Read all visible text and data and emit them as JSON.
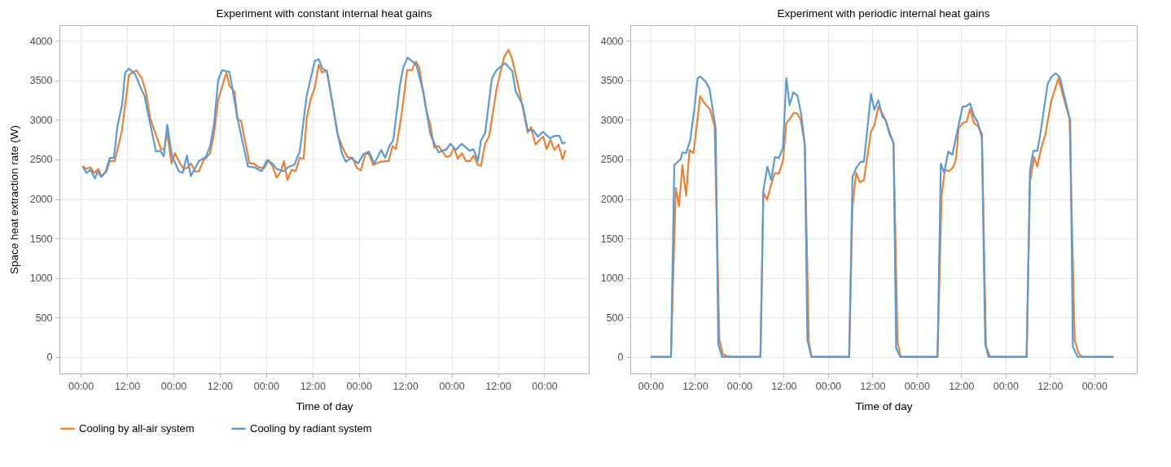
{
  "chart_data": [
    {
      "type": "line",
      "title": "Experiment with constant internal heat gains",
      "xlabel": "Time of day",
      "ylabel": "Space heat extraction rate (W)",
      "xlim": [
        "--01-01T18:30",
        "--01-07T11:30"
      ],
      "ylim": [
        -210,
        4200
      ],
      "xticks": [
        {
          "value": "--01-02T00:00",
          "label": "00:00"
        },
        {
          "value": "--01-02T12:00",
          "label": "12:00"
        },
        {
          "value": "--01-03T00:00",
          "label": "00:00"
        },
        {
          "value": "--01-03T12:00",
          "label": "12:00"
        },
        {
          "value": "--01-04T00:00",
          "label": "00:00"
        },
        {
          "value": "--01-04T12:00",
          "label": "12:00"
        },
        {
          "value": "--01-05T00:00",
          "label": "00:00"
        },
        {
          "value": "--01-05T12:00",
          "label": "12:00"
        },
        {
          "value": "--01-06T00:00",
          "label": "00:00"
        },
        {
          "value": "--01-06T12:00",
          "label": "12:00"
        },
        {
          "value": "--01-07T00:00",
          "label": "00:00"
        }
      ],
      "yticks": [
        0,
        500,
        1000,
        1500,
        2000,
        2500,
        3000,
        3500,
        4000
      ],
      "grid": true,
      "legend": "bottom",
      "series": [
        {
          "name": "Cooling by all-air system",
          "color": "#ee8032",
          "x": [
            "--01-02T00:30",
            "--01-02T01:24",
            "--01-02T02:30",
            "--01-02T03:30",
            "--01-02T04:36",
            "--01-02T05:24",
            "--01-02T06:42",
            "--01-02T07:30",
            "--01-02T08:48",
            "--01-02T09:30",
            "--01-02T10:36",
            "--01-02T11:36",
            "--01-02T12:30",
            "--01-02T14:24",
            "--01-02T15:48",
            "--01-02T16:54",
            "--01-02T18:00",
            "--01-02T19:24",
            "--01-02T20:48",
            "--01-02T21:36",
            "--01-02T22:24",
            "--01-02T23:30",
            "--01-03T00:24",
            "--01-03T01:42",
            "--01-03T02:42",
            "--01-03T03:48",
            "--01-03T04:30",
            "--01-03T05:36",
            "--01-03T06:36",
            "--01-03T07:42",
            "--01-03T09:30",
            "--01-03T10:30",
            "--01-03T11:36",
            "--01-03T13:42",
            "--01-03T14:30",
            "--01-03T15:48",
            "--01-03T16:36",
            "--01-03T17:30",
            "--01-03T19:42",
            "--01-03T20:42",
            "--01-03T22:06",
            "--01-03T23:30",
            "--01-04T00:36",
            "--01-04T01:42",
            "--01-04T02:42",
            "--01-04T03:48",
            "--01-04T04:36",
            "--01-04T05:30",
            "--01-04T06:36",
            "--01-04T07:36",
            "--01-04T08:42",
            "--01-04T09:42",
            "--01-04T10:30",
            "--01-04T11:30",
            "--01-04T12:36",
            "--01-04T13:36",
            "--01-04T14:30",
            "--01-04T15:42",
            "--01-04T17:06",
            "--01-04T18:30",
            "--01-04T19:36",
            "--01-04T21:00",
            "--01-04T22:24",
            "--01-04T23:24",
            "--01-05T00:30",
            "--01-05T01:42",
            "--01-05T02:36",
            "--01-05T03:42",
            "--01-05T05:24",
            "--01-05T07:42",
            "--01-05T08:42",
            "--01-05T09:36",
            "--01-05T11:06",
            "--01-05T12:30",
            "--01-05T13:42",
            "--01-05T14:42",
            "--01-05T15:36",
            "--01-05T17:24",
            "--01-05T18:30",
            "--01-05T19:30",
            "--01-05T20:36",
            "--01-05T22:42",
            "--01-05T23:42",
            "--01-06T00:36",
            "--01-06T01:36",
            "--01-06T02:42",
            "--01-06T03:42",
            "--01-06T04:48",
            "--01-06T05:42",
            "--01-06T06:48",
            "--01-06T07:36",
            "--01-06T08:42",
            "--01-06T09:42",
            "--01-06T11:42",
            "--01-06T13:36",
            "--01-06T14:42",
            "--01-06T15:42",
            "--01-06T17:42",
            "--01-06T19:42",
            "--01-06T20:36",
            "--01-06T21:42",
            "--01-06T23:42",
            "--01-07T00:36",
            "--01-07T01:36",
            "--01-07T02:36",
            "--01-07T03:42",
            "--01-07T04:42",
            "--01-07T05:30"
          ],
          "values": [
            2420,
            2380,
            2400,
            2330,
            2380,
            2280,
            2350,
            2480,
            2480,
            2620,
            2850,
            3230,
            3570,
            3630,
            3530,
            3350,
            3020,
            2820,
            2630,
            2630,
            2840,
            2450,
            2580,
            2450,
            2380,
            2400,
            2450,
            2350,
            2350,
            2480,
            2580,
            2820,
            3260,
            3600,
            3430,
            3360,
            3010,
            2990,
            2450,
            2450,
            2400,
            2390,
            2490,
            2410,
            2270,
            2350,
            2480,
            2240,
            2370,
            2350,
            2520,
            2510,
            3020,
            3260,
            3410,
            3700,
            3600,
            3630,
            3230,
            2820,
            2670,
            2530,
            2520,
            2400,
            2360,
            2570,
            2570,
            2430,
            2470,
            2480,
            2670,
            2630,
            3090,
            3630,
            3630,
            3740,
            3670,
            3130,
            2940,
            2650,
            2670,
            2530,
            2550,
            2650,
            2510,
            2580,
            2480,
            2480,
            2550,
            2430,
            2420,
            2700,
            2790,
            3410,
            3800,
            3890,
            3770,
            3330,
            2840,
            2910,
            2690,
            2790,
            2630,
            2750,
            2620,
            2690,
            2500,
            2620
          ]
        },
        {
          "name": "Cooling by radiant system",
          "color": "#5b9bd5",
          "x": [
            "--01-02T00:30",
            "--01-02T01:30",
            "--01-02T02:30",
            "--01-02T03:42",
            "--01-02T04:24",
            "--01-02T05:18",
            "--01-02T06:30",
            "--01-02T07:30",
            "--01-02T08:36",
            "--01-02T09:30",
            "--01-02T10:42",
            "--01-02T11:30",
            "--01-02T12:30",
            "--01-02T14:06",
            "--01-02T15:30",
            "--01-02T16:30",
            "--01-02T17:36",
            "--01-02T19:30",
            "--01-02T20:36",
            "--01-02T21:30",
            "--01-02T22:24",
            "--01-02T23:36",
            "--01-03T01:24",
            "--01-03T02:24",
            "--01-03T03:30",
            "--01-03T04:30",
            "--01-03T06:36",
            "--01-03T08:24",
            "--01-03T09:30",
            "--01-03T10:30",
            "--01-03T11:36",
            "--01-03T12:36",
            "--01-03T14:30",
            "--01-03T15:24",
            "--01-03T16:30",
            "--01-03T17:54",
            "--01-03T19:18",
            "--01-03T21:06",
            "--01-03T22:48",
            "--01-04T00:12",
            "--01-04T01:36",
            "--01-04T02:42",
            "--01-04T04:30",
            "--01-04T05:54",
            "--01-04T07:18",
            "--01-04T08:42",
            "--01-04T10:30",
            "--01-04T12:36",
            "--01-04T13:36",
            "--01-04T14:36",
            "--01-04T15:42",
            "--01-04T17:06",
            "--01-04T18:30",
            "--01-04T19:36",
            "--01-04T20:36",
            "--01-04T22:00",
            "--01-04T23:48",
            "--01-05T01:12",
            "--01-05T02:36",
            "--01-05T04:00",
            "--01-05T05:48",
            "--01-05T06:48",
            "--01-05T07:54",
            "--01-05T08:54",
            "--01-05T10:36",
            "--01-05T11:30",
            "--01-05T12:36",
            "--01-05T13:54",
            "--01-05T14:54",
            "--01-05T16:42",
            "--01-05T18:30",
            "--01-05T20:36",
            "--01-05T22:42",
            "--01-05T23:42",
            "--01-06T01:06",
            "--01-06T02:36",
            "--01-06T04:42",
            "--01-06T05:42",
            "--01-06T06:48",
            "--01-06T07:36",
            "--01-06T08:42",
            "--01-06T10:24",
            "--01-06T11:36",
            "--01-06T13:48",
            "--01-06T15:42",
            "--01-06T16:36",
            "--01-06T18:24",
            "--01-06T19:42",
            "--01-06T21:12",
            "--01-06T22:18",
            "--01-06T23:42",
            "--01-07T01:24",
            "--01-07T02:48",
            "--01-07T03:54",
            "--01-07T04:42",
            "--01-07T05:30"
          ],
          "values": [
            2410,
            2330,
            2370,
            2260,
            2350,
            2280,
            2350,
            2520,
            2520,
            2920,
            3190,
            3600,
            3650,
            3580,
            3410,
            3310,
            3040,
            2600,
            2610,
            2540,
            2940,
            2550,
            2350,
            2330,
            2550,
            2290,
            2480,
            2530,
            2670,
            2940,
            3510,
            3630,
            3610,
            3360,
            3040,
            2720,
            2410,
            2400,
            2350,
            2490,
            2450,
            2380,
            2350,
            2410,
            2430,
            2600,
            3310,
            3750,
            3770,
            3650,
            3620,
            3230,
            2820,
            2580,
            2470,
            2520,
            2450,
            2570,
            2600,
            2450,
            2620,
            2520,
            2670,
            2740,
            3430,
            3670,
            3790,
            3740,
            3690,
            3350,
            2820,
            2590,
            2630,
            2700,
            2620,
            2700,
            2610,
            2630,
            2480,
            2740,
            2840,
            3520,
            3630,
            3720,
            3620,
            3360,
            3190,
            2870,
            2870,
            2790,
            2850,
            2770,
            2800,
            2800,
            2700,
            2720
          ]
        }
      ]
    },
    {
      "type": "line",
      "title": "Experiment with periodic internal heat gains",
      "xlabel": "Time of day",
      "xlim": [
        "--01-01T18:30",
        "--01-07T11:30"
      ],
      "ylim": [
        -210,
        4200
      ],
      "xticks": [
        {
          "value": "--01-02T00:00",
          "label": "00:00"
        },
        {
          "value": "--01-02T12:00",
          "label": "12:00"
        },
        {
          "value": "--01-03T00:00",
          "label": "00:00"
        },
        {
          "value": "--01-03T12:00",
          "label": "12:00"
        },
        {
          "value": "--01-04T00:00",
          "label": "00:00"
        },
        {
          "value": "--01-04T12:00",
          "label": "12:00"
        },
        {
          "value": "--01-05T00:00",
          "label": "00:00"
        },
        {
          "value": "--01-05T12:00",
          "label": "12:00"
        },
        {
          "value": "--01-06T00:00",
          "label": "00:00"
        },
        {
          "value": "--01-06T12:00",
          "label": "12:00"
        },
        {
          "value": "--01-07T00:00",
          "label": "00:00"
        }
      ],
      "yticks": [
        0,
        500,
        1000,
        1500,
        2000,
        2500,
        3000,
        3500,
        4000
      ],
      "grid": true,
      "legend": "bottom",
      "series": [
        {
          "name": "Cooling by all-air system",
          "color": "#ee8032",
          "x": [
            "--01-02T00:00",
            "--01-02T05:30",
            "--01-02T06:48",
            "--01-02T07:42",
            "--01-02T08:36",
            "--01-02T09:36",
            "--01-02T10:30",
            "--01-02T11:36",
            "--01-02T13:24",
            "--01-02T14:36",
            "--01-02T16:06",
            "--01-02T17:18",
            "--01-02T18:36",
            "--01-02T19:36",
            "--01-02T20:42",
            "--01-02T21:36",
            "--01-03T05:42",
            "--01-03T06:30",
            "--01-03T07:30",
            "--01-03T08:36",
            "--01-03T09:36",
            "--01-03T10:42",
            "--01-03T11:48",
            "--01-03T12:42",
            "--01-03T13:36",
            "--01-03T14:42",
            "--01-03T15:42",
            "--01-03T16:36",
            "--01-03T17:42",
            "--01-03T18:48",
            "--01-03T19:30",
            "--01-04T05:42",
            "--01-04T06:36",
            "--01-04T07:36",
            "--01-04T08:36",
            "--01-04T09:42",
            "--01-04T11:36",
            "--01-04T12:30",
            "--01-04T13:36",
            "--01-04T14:42",
            "--01-04T15:36",
            "--01-04T16:36",
            "--01-04T17:42",
            "--01-04T18:48",
            "--01-04T19:36",
            "--01-04T20:12",
            "--01-05T05:36",
            "--01-05T06:42",
            "--01-05T07:36",
            "--01-05T08:42",
            "--01-05T09:48",
            "--01-05T10:36",
            "--01-05T11:18",
            "--01-05T12:24",
            "--01-05T13:30",
            "--01-05T14:24",
            "--01-05T15:30",
            "--01-05T16:30",
            "--01-05T17:36",
            "--01-05T18:42",
            "--01-05T19:48",
            "--01-06T05:42",
            "--01-06T06:36",
            "--01-06T07:42",
            "--01-06T08:36",
            "--01-06T09:30",
            "--01-06T10:48",
            "--01-06T12:18",
            "--01-06T14:18",
            "--01-06T16:00",
            "--01-06T17:18",
            "--01-06T18:42",
            "--01-06T19:48",
            "--01-06T20:48",
            "--01-07T05:12"
          ],
          "values": [
            0,
            0,
            2140,
            1910,
            2430,
            2040,
            2620,
            2580,
            3300,
            3210,
            3130,
            2920,
            210,
            30,
            10,
            0,
            0,
            2080,
            1990,
            2180,
            2330,
            2320,
            2480,
            2960,
            3010,
            3090,
            3080,
            3000,
            2690,
            190,
            0,
            0,
            1910,
            2330,
            2210,
            2240,
            2850,
            2930,
            3170,
            3080,
            2990,
            2850,
            2710,
            180,
            10,
            0,
            0,
            2040,
            2370,
            2350,
            2400,
            2500,
            2890,
            2960,
            2980,
            3140,
            2960,
            2920,
            2830,
            140,
            0,
            0,
            2210,
            2530,
            2410,
            2620,
            2820,
            3230,
            3530,
            3230,
            3020,
            210,
            40,
            0,
            0
          ]
        },
        {
          "name": "Cooling by radiant system",
          "color": "#5b9bd5",
          "x": [
            "--01-02T00:00",
            "--01-02T05:30",
            "--01-02T06:24",
            "--01-02T08:06",
            "--01-02T08:36",
            "--01-02T09:36",
            "--01-02T10:42",
            "--01-02T11:48",
            "--01-02T12:42",
            "--01-02T13:24",
            "--01-02T14:48",
            "--01-02T15:54",
            "--01-02T17:36",
            "--01-02T18:18",
            "--01-02T19:18",
            "--01-03T05:42",
            "--01-03T06:30",
            "--01-03T07:36",
            "--01-03T08:36",
            "--01-03T09:36",
            "--01-03T10:42",
            "--01-03T11:48",
            "--01-03T12:42",
            "--01-03T13:36",
            "--01-03T14:36",
            "--01-03T15:42",
            "--01-03T16:42",
            "--01-03T17:42",
            "--01-03T18:24",
            "--01-03T19:30",
            "--01-04T05:42",
            "--01-04T06:36",
            "--01-04T07:42",
            "--01-04T08:48",
            "--01-04T09:42",
            "--01-04T11:36",
            "--01-04T12:30",
            "--01-04T13:36",
            "--01-04T14:42",
            "--01-04T15:36",
            "--01-04T16:36",
            "--01-04T17:42",
            "--01-04T18:24",
            "--01-04T19:30",
            "--01-05T05:36",
            "--01-05T06:30",
            "--01-05T07:24",
            "--01-05T08:30",
            "--01-05T09:36",
            "--01-05T10:36",
            "--01-05T12:24",
            "--01-05T13:18",
            "--01-05T14:24",
            "--01-05T15:30",
            "--01-05T16:30",
            "--01-05T17:36",
            "--01-05T18:30",
            "--01-05T19:24",
            "--01-06T05:42",
            "--01-06T06:36",
            "--01-06T07:30",
            "--01-06T08:36",
            "--01-06T09:24",
            "--01-06T11:24",
            "--01-06T12:30",
            "--01-06T13:36",
            "--01-06T14:42",
            "--01-06T17:30",
            "--01-06T18:12",
            "--01-06T19:30",
            "--01-07T05:12"
          ],
          "values": [
            0,
            0,
            2430,
            2500,
            2590,
            2580,
            2740,
            3130,
            3530,
            3550,
            3490,
            3400,
            2890,
            160,
            0,
            0,
            2110,
            2410,
            2240,
            2530,
            2520,
            2650,
            3530,
            3190,
            3350,
            3310,
            3080,
            2690,
            210,
            0,
            0,
            2280,
            2400,
            2470,
            2470,
            3330,
            3130,
            3250,
            3040,
            3000,
            2820,
            2710,
            110,
            0,
            0,
            2450,
            2330,
            2600,
            2560,
            2780,
            3170,
            3170,
            3210,
            3050,
            2970,
            2770,
            160,
            0,
            0,
            2350,
            2610,
            2610,
            2820,
            3460,
            3550,
            3590,
            3540,
            2990,
            130,
            0,
            0
          ]
        }
      ]
    }
  ]
}
